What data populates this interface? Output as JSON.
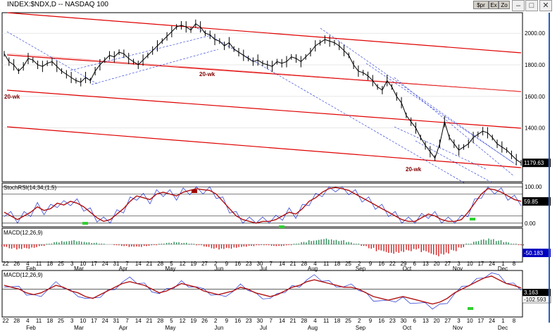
{
  "window": {
    "title": "INDEX:$NDX,D -- NASDAQ 100",
    "toolbar_buttons": [
      "$pr",
      "Ex",
      "Zo"
    ],
    "minimize_glyph": "–",
    "maximize_glyph": "□",
    "close_glyph": "✕"
  },
  "colors": {
    "price": "#000000",
    "channel_red": "#e00000",
    "channel_blue": "#1c2fd0",
    "stoch_red": "#b01010",
    "macd_pos": "#2e8b57",
    "macd_neg": "#d02020",
    "marker_green": "#2fd02f",
    "last_label_bg": "#000000",
    "blue_label_bg": "#0000c0"
  },
  "chart_data": [
    {
      "type": "line",
      "panel": "price",
      "title": "INDEX:$NDX,D -- NASDAQ 100",
      "ylim": [
        1060,
        2130
      ],
      "y_ticks": [
        "2000.00",
        "1800.00",
        "1600.00",
        "1400.00"
      ],
      "last_value": "1179.63",
      "annotations": [
        "20-wk",
        "20-wk",
        "20-wk"
      ],
      "series": [
        {
          "values": [
            1870,
            1820,
            1800,
            1760,
            1790,
            1840,
            1830,
            1800,
            1790,
            1810,
            1820,
            1790,
            1760,
            1740,
            1720,
            1700,
            1690,
            1720,
            1700,
            1760,
            1800,
            1830,
            1860,
            1850,
            1880,
            1870,
            1840,
            1820,
            1800,
            1830,
            1860,
            1890,
            1920,
            1950,
            1980,
            2010,
            2040,
            2050,
            2040,
            2020,
            2060,
            2040,
            2000,
            1990,
            1960,
            1950,
            1920,
            1940,
            1900,
            1880,
            1860,
            1840,
            1820,
            1830,
            1810,
            1800,
            1790,
            1820,
            1810,
            1820,
            1850,
            1840,
            1820,
            1850,
            1880,
            1920,
            1940,
            1960,
            1950,
            1940,
            1920,
            1890,
            1860,
            1800,
            1760,
            1750,
            1730,
            1700,
            1660,
            1640,
            1700,
            1660,
            1600,
            1560,
            1480,
            1440,
            1400,
            1340,
            1290,
            1250,
            1210,
            1300,
            1440,
            1340,
            1300,
            1260,
            1280,
            1300,
            1340,
            1360,
            1380,
            1370,
            1340,
            1300,
            1280,
            1260,
            1230,
            1200,
            1179.63
          ]
        }
      ]
    },
    {
      "type": "line",
      "panel": "stochrsi",
      "title": "StochRSI(14,34,(1,5)",
      "ylim": [
        -10,
        110
      ],
      "y_ticks": [
        "100.00",
        "0.00"
      ],
      "last_value": "59.85",
      "series": [
        {
          "values": [
            30,
            20,
            10,
            20,
            30,
            45,
            35,
            40,
            55,
            50,
            60,
            55,
            45,
            30,
            15,
            5,
            10,
            25,
            40,
            60,
            75,
            70,
            65,
            80,
            85,
            80,
            75,
            85,
            90,
            95,
            92,
            90,
            80,
            60,
            40,
            20,
            10,
            5,
            0,
            5,
            5,
            10,
            20,
            30,
            25,
            40,
            60,
            70,
            85,
            95,
            98,
            95,
            90,
            80,
            70,
            60,
            50,
            40,
            30,
            20,
            10,
            5,
            5,
            15,
            25,
            20,
            10,
            5,
            5,
            10,
            30,
            55,
            80,
            95,
            92,
            85,
            75,
            65,
            60
          ]
        }
      ]
    },
    {
      "type": "bar",
      "panel": "macd_histogram",
      "title": "MACD(12,26,9)",
      "last_value": "-50.183",
      "values": [
        -3,
        -5,
        -6,
        -5,
        -4,
        -2,
        1,
        3,
        4,
        5,
        4,
        3,
        2,
        1,
        0,
        -1,
        -2,
        -3,
        -3,
        -2,
        -1,
        1,
        2,
        3,
        2,
        1,
        -1,
        -3,
        -5,
        -6,
        -5,
        -4,
        -3,
        -2,
        -1,
        -1,
        -2,
        -2,
        -1,
        1,
        3,
        5,
        6,
        7,
        6,
        5,
        3,
        1,
        -2,
        -5,
        -8,
        -10,
        -11,
        -10,
        -8,
        -6,
        -9,
        -12,
        -14,
        -12,
        -8,
        -4,
        1,
        4,
        6,
        7,
        5,
        3,
        1,
        -1
      ]
    },
    {
      "type": "line",
      "panel": "macd",
      "title": "MACD(12,26,9)",
      "ylim": [
        -60,
        40
      ],
      "last_values": [
        "3.163",
        "-102.593"
      ],
      "series": [
        {
          "values": [
            10,
            5,
            0,
            -10,
            -15,
            -10,
            0,
            10,
            5,
            -5,
            -10,
            -20,
            -25,
            -15,
            -5,
            5,
            15,
            20,
            15,
            10,
            0,
            -10,
            -5,
            5,
            15,
            10,
            5,
            -5,
            -10,
            -15,
            -10,
            -5,
            5,
            0,
            -10,
            -15,
            -20,
            -15,
            -5,
            5,
            10,
            20,
            25,
            20,
            15,
            10,
            5,
            5,
            0,
            -10,
            -20,
            -25,
            -30,
            -25,
            -20,
            -25,
            -30,
            -35,
            -40,
            -35,
            -25,
            -10,
            0,
            10,
            20,
            30,
            35,
            25,
            15,
            10,
            3
          ]
        }
      ]
    }
  ],
  "x_axis": {
    "day_labels_top": [
      "22",
      "26",
      "4",
      "11",
      "18",
      "25",
      "3",
      "10",
      "17",
      "24",
      "31",
      "7",
      "14",
      "21",
      "28",
      "5",
      "12",
      "19",
      "27",
      "2",
      "9",
      "16",
      "23",
      "30",
      "7",
      "14",
      "21",
      "28",
      "4",
      "11",
      "18",
      "25",
      "2",
      "9",
      "16",
      "22",
      "29",
      "6",
      "13",
      "20",
      "27",
      "3",
      "10",
      "17",
      "24",
      "1",
      "8"
    ],
    "day_labels_bottom": [
      "22",
      "28",
      "4",
      "11",
      "18",
      "25",
      "3",
      "10",
      "17",
      "24",
      "31",
      "7",
      "14",
      "21",
      "28",
      "5",
      "12",
      "19",
      "26",
      "2",
      "9",
      "16",
      "23",
      "30",
      "7",
      "14",
      "21",
      "28",
      "4",
      "11",
      "18",
      "25",
      "2",
      "9",
      "16",
      "23",
      "30",
      "6",
      "13",
      "20",
      "27",
      "3",
      "10",
      "17",
      "24",
      "1",
      "8"
    ],
    "months": [
      "Feb",
      "Mar",
      "Apr",
      "May",
      "Jun",
      "Jul",
      "Aug",
      "Sep",
      "Oct",
      "Nov",
      "Dec"
    ]
  }
}
